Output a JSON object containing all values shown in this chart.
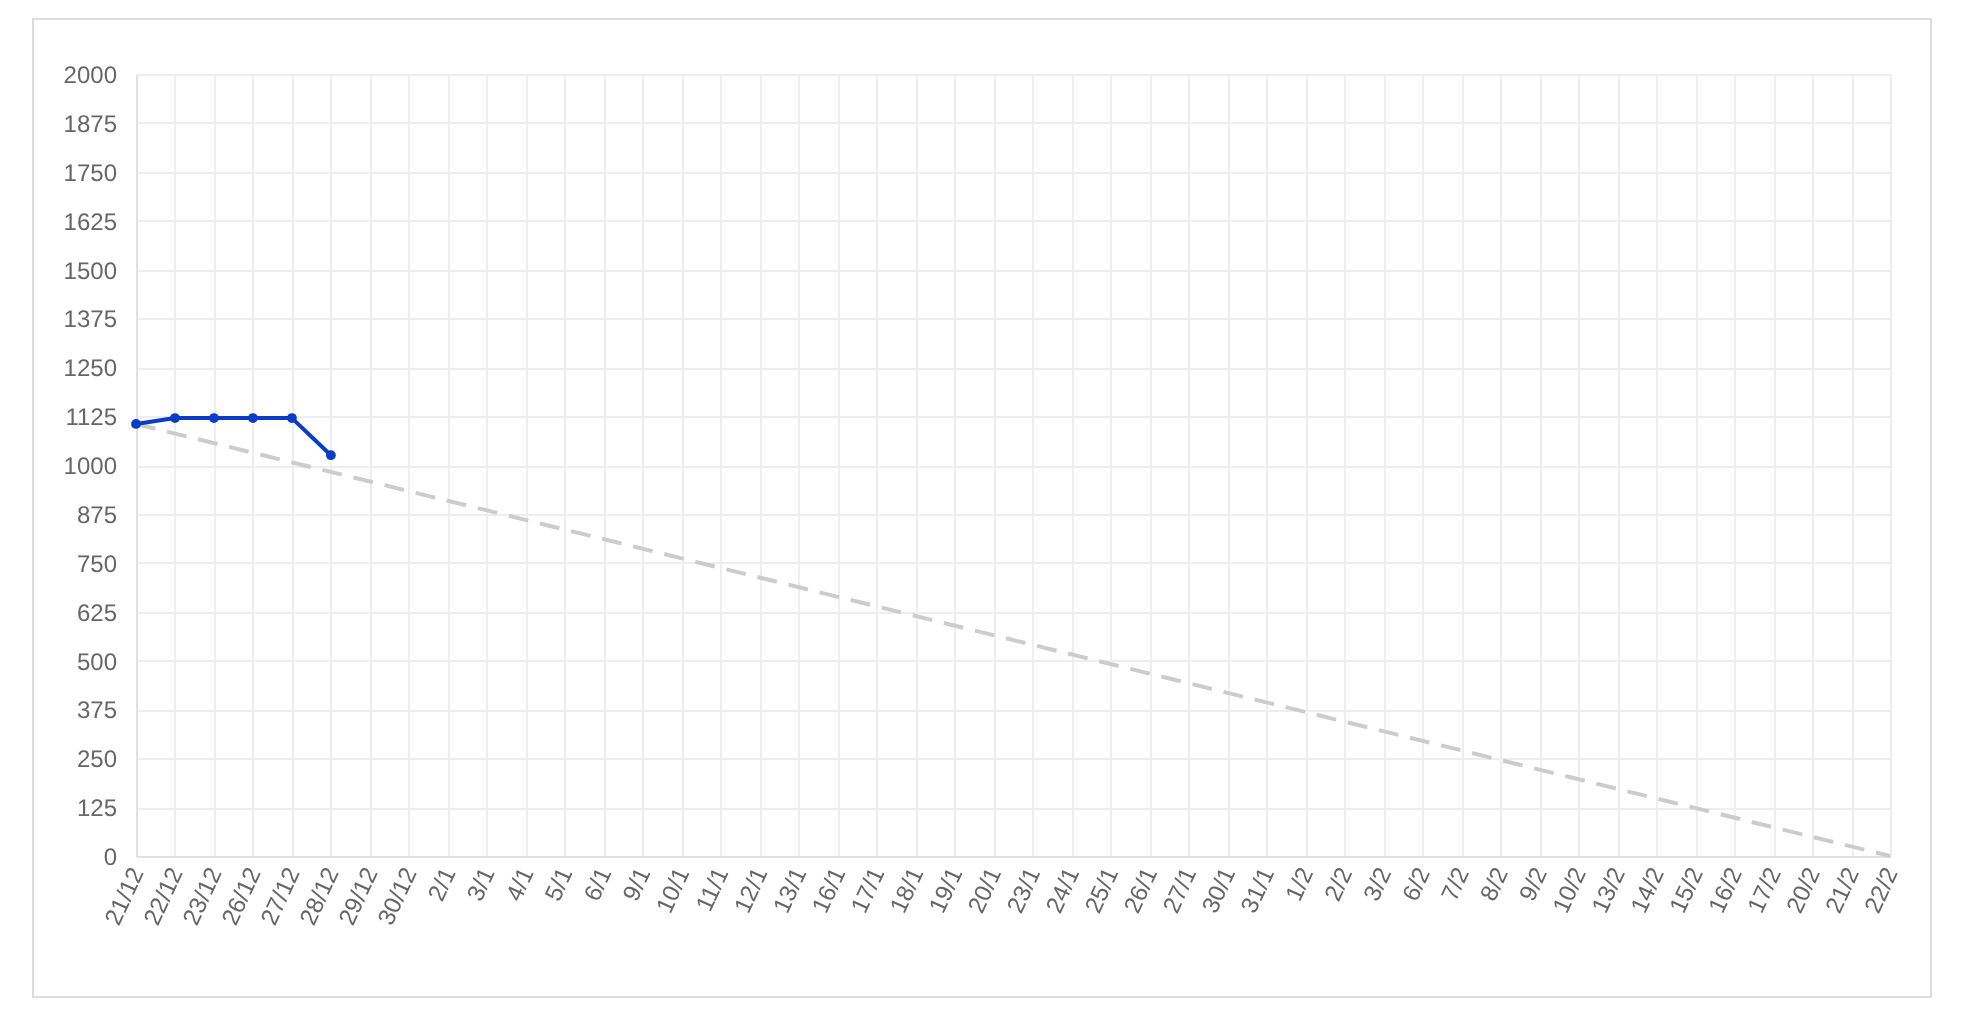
{
  "chart_data": {
    "type": "line",
    "categories": [
      "21/12",
      "22/12",
      "23/12",
      "26/12",
      "27/12",
      "28/12",
      "29/12",
      "30/12",
      "2/1",
      "3/1",
      "4/1",
      "5/1",
      "6/1",
      "9/1",
      "10/1",
      "11/1",
      "12/1",
      "13/1",
      "16/1",
      "17/1",
      "18/1",
      "19/1",
      "20/1",
      "23/1",
      "24/1",
      "25/1",
      "26/1",
      "27/1",
      "30/1",
      "31/1",
      "1/2",
      "2/2",
      "3/2",
      "6/2",
      "7/2",
      "8/2",
      "9/2",
      "10/2",
      "13/2",
      "14/2",
      "15/2",
      "16/2",
      "17/2",
      "20/2",
      "21/2",
      "22/2"
    ],
    "series": [
      {
        "color": "#cccccc",
        "x": [
          "21/12",
          "22/2"
        ],
        "values": [
          1105,
          0
        ],
        "line_style": "dashed",
        "marker": "none"
      },
      {
        "color": "#0a3cc8",
        "values": [
          1105,
          1120,
          1120,
          1120,
          1120,
          1025,
          null,
          null,
          null,
          null,
          null,
          null,
          null,
          null,
          null,
          null,
          null,
          null,
          null,
          null,
          null,
          null,
          null,
          null,
          null,
          null,
          null,
          null,
          null,
          null,
          null,
          null,
          null,
          null,
          null,
          null,
          null,
          null,
          null,
          null,
          null,
          null,
          null,
          null,
          null,
          null
        ],
        "line_style": "solid",
        "marker": "circle"
      }
    ],
    "ylim": [
      0,
      2000
    ],
    "yticks": [
      0,
      125,
      250,
      375,
      500,
      625,
      750,
      875,
      1000,
      1125,
      1250,
      1375,
      1500,
      1625,
      1750,
      1875,
      2000
    ],
    "grid": true
  }
}
